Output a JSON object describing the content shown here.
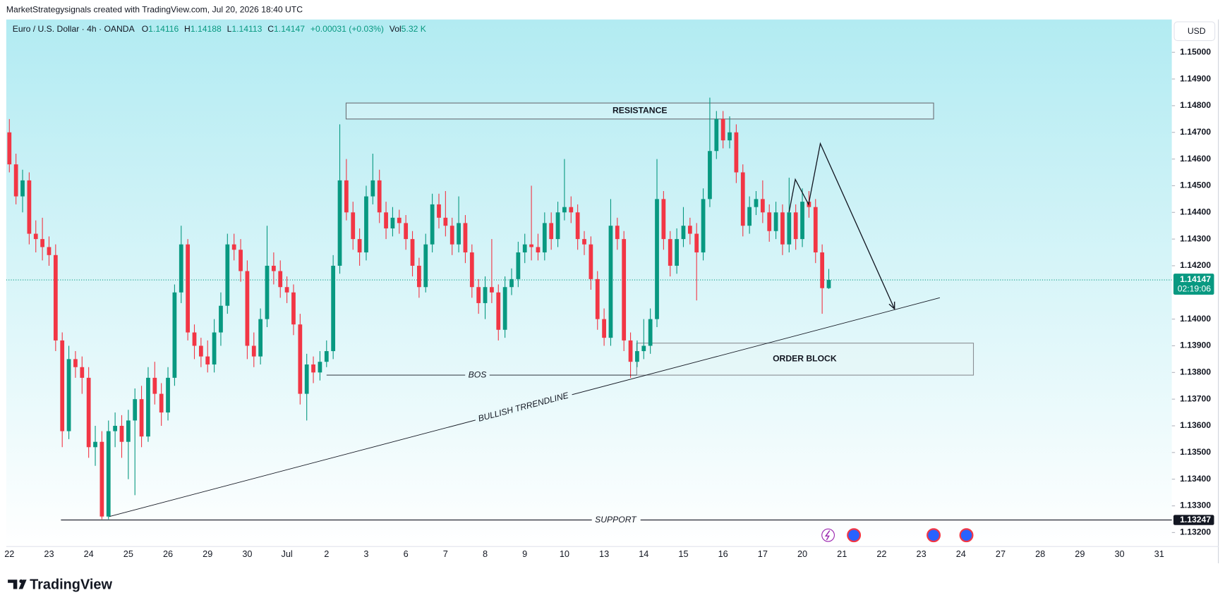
{
  "attribution": "MarketStrategysignals created with TradingView.com, Jul 20, 2026 18:40 UTC",
  "logo": "TradingView",
  "chart_data": {
    "type": "candlestick",
    "title": "Euro / U.S. Dollar · 4h · OANDA",
    "ohlc_labels": [
      "O",
      "H",
      "L",
      "C"
    ],
    "change": "+0.00031 (+0.03%)",
    "volume_label": "Vol",
    "volume": "5.32 K",
    "currency": "USD",
    "countdown": "02:19:06",
    "up_color": "#089981",
    "down_color": "#f23645",
    "ylim": [
      1.13149,
      1.15123
    ],
    "yticks": [
      {
        "value": 1.15,
        "label": "1.15000"
      },
      {
        "value": 1.149,
        "label": "1.14900"
      },
      {
        "value": 1.148,
        "label": "1.14800"
      },
      {
        "value": 1.147,
        "label": "1.14700"
      },
      {
        "value": 1.146,
        "label": "1.14600"
      },
      {
        "value": 1.145,
        "label": "1.14500"
      },
      {
        "value": 1.144,
        "label": "1.14400"
      },
      {
        "value": 1.143,
        "label": "1.14300"
      },
      {
        "value": 1.142,
        "label": "1.14200"
      },
      {
        "value": 1.14,
        "label": "1.14000"
      },
      {
        "value": 1.139,
        "label": "1.13900"
      },
      {
        "value": 1.138,
        "label": "1.13800"
      },
      {
        "value": 1.137,
        "label": "1.13700"
      },
      {
        "value": 1.136,
        "label": "1.13600"
      },
      {
        "value": 1.135,
        "label": "1.13500"
      },
      {
        "value": 1.134,
        "label": "1.13400"
      },
      {
        "value": 1.133,
        "label": "1.13300"
      },
      {
        "value": 1.132,
        "label": "1.13200"
      }
    ],
    "xtick_labels": [
      "22",
      "23",
      "24",
      "25",
      "26",
      "29",
      "30",
      "Jul",
      "2",
      "3",
      "6",
      "7",
      "8",
      "9",
      "10",
      "13",
      "14",
      "15",
      "16",
      "17",
      "20",
      "21",
      "22",
      "23",
      "24",
      "27",
      "28",
      "29",
      "30",
      "31"
    ],
    "open": [
      1.147,
      1.1458,
      1.1446,
      1.1452,
      1.1432,
      1.143,
      1.1427,
      1.1424,
      1.1392,
      1.1358,
      1.1385,
      1.1382,
      1.1378,
      1.1352,
      1.1354,
      1.1326,
      1.1358,
      1.136,
      1.1354,
      1.1362,
      1.137,
      1.1356,
      1.1378,
      1.1372,
      1.1365,
      1.1378,
      1.141,
      1.1428,
      1.1395,
      1.139,
      1.1386,
      1.1383,
      1.1395,
      1.1405,
      1.1428,
      1.1426,
      1.1418,
      1.139,
      1.1386,
      1.14,
      1.142,
      1.1418,
      1.1412,
      1.141,
      1.1398,
      1.1372,
      1.1383,
      1.138,
      1.1384,
      1.1388,
      1.142,
      1.1452,
      1.144,
      1.143,
      1.1425,
      1.1446,
      1.1452,
      1.144,
      1.1434,
      1.1438,
      1.1436,
      1.143,
      1.142,
      1.1412,
      1.1428,
      1.1443,
      1.1438,
      1.1435,
      1.1428,
      1.1436,
      1.1425,
      1.1412,
      1.1406,
      1.1412,
      1.141,
      1.1396,
      1.1412,
      1.1415,
      1.1425,
      1.1428,
      1.1427,
      1.1425,
      1.1436,
      1.143,
      1.144,
      1.1442,
      1.144,
      1.143,
      1.1428,
      1.1415,
      1.14,
      1.1393,
      1.1435,
      1.143,
      1.1392,
      1.1384,
      1.1388,
      1.139,
      1.14,
      1.1445,
      1.143,
      1.142,
      1.143,
      1.1435,
      1.1432,
      1.1425,
      1.1445,
      1.1463,
      1.1475,
      1.1467,
      1.147,
      1.1455,
      1.1435,
      1.1442,
      1.1445,
      1.144,
      1.1433,
      1.144,
      1.1428,
      1.144,
      1.143,
      1.1444,
      1.1442,
      1.1425,
      1.14116
    ],
    "high": [
      1.1475,
      1.1462,
      1.1456,
      1.1455,
      1.1437,
      1.1438,
      1.1431,
      1.1428,
      1.1395,
      1.139,
      1.1388,
      1.1386,
      1.1382,
      1.136,
      1.1358,
      1.1362,
      1.1365,
      1.1364,
      1.1366,
      1.1374,
      1.1375,
      1.1382,
      1.1384,
      1.1376,
      1.1382,
      1.1413,
      1.1435,
      1.143,
      1.1398,
      1.1393,
      1.1392,
      1.14,
      1.141,
      1.1432,
      1.1432,
      1.143,
      1.1422,
      1.1395,
      1.1404,
      1.1435,
      1.1425,
      1.1422,
      1.1416,
      1.1413,
      1.1402,
      1.1387,
      1.1386,
      1.1388,
      1.1392,
      1.1424,
      1.1473,
      1.146,
      1.1444,
      1.1434,
      1.145,
      1.1462,
      1.1456,
      1.1444,
      1.1442,
      1.1441,
      1.1439,
      1.1433,
      1.1423,
      1.1432,
      1.1447,
      1.1447,
      1.1448,
      1.1438,
      1.1446,
      1.1439,
      1.1428,
      1.1415,
      1.1416,
      1.143,
      1.1413,
      1.1416,
      1.1419,
      1.1429,
      1.1432,
      1.145,
      1.1432,
      1.144,
      1.144,
      1.1444,
      1.146,
      1.1446,
      1.1443,
      1.1433,
      1.1431,
      1.1418,
      1.1404,
      1.1445,
      1.1438,
      1.1433,
      1.1395,
      1.1392,
      1.14,
      1.1404,
      1.146,
      1.1448,
      1.1433,
      1.1434,
      1.1442,
      1.1438,
      1.1436,
      1.1449,
      1.1483,
      1.1478,
      1.1478,
      1.1476,
      1.1473,
      1.1458,
      1.1446,
      1.1448,
      1.1452,
      1.1443,
      1.1444,
      1.1443,
      1.1453,
      1.1443,
      1.1449,
      1.1448,
      1.1445,
      1.1428,
      1.14188
    ],
    "low": [
      1.1455,
      1.1443,
      1.144,
      1.1428,
      1.1425,
      1.1422,
      1.142,
      1.1388,
      1.1352,
      1.1355,
      1.1378,
      1.1372,
      1.1348,
      1.1345,
      1.1325,
      1.1325,
      1.1352,
      1.1348,
      1.134,
      1.1334,
      1.1352,
      1.1354,
      1.1368,
      1.136,
      1.1362,
      1.1375,
      1.1406,
      1.1392,
      1.1385,
      1.1382,
      1.138,
      1.138,
      1.139,
      1.1402,
      1.1422,
      1.1414,
      1.1385,
      1.1382,
      1.1383,
      1.1397,
      1.1413,
      1.1408,
      1.1406,
      1.1394,
      1.1368,
      1.1362,
      1.1376,
      1.1377,
      1.1382,
      1.1385,
      1.1417,
      1.1437,
      1.1426,
      1.142,
      1.1422,
      1.1443,
      1.1436,
      1.143,
      1.1431,
      1.1432,
      1.1426,
      1.1416,
      1.1408,
      1.141,
      1.1425,
      1.1434,
      1.1431,
      1.1424,
      1.1425,
      1.1421,
      1.1408,
      1.1402,
      1.14,
      1.1406,
      1.1392,
      1.1393,
      1.1409,
      1.1412,
      1.1421,
      1.1422,
      1.1422,
      1.1422,
      1.1426,
      1.1427,
      1.1437,
      1.1436,
      1.1426,
      1.1424,
      1.1411,
      1.1396,
      1.139,
      1.139,
      1.1426,
      1.1388,
      1.1378,
      1.1382,
      1.1385,
      1.1387,
      1.1397,
      1.1426,
      1.1416,
      1.1417,
      1.1427,
      1.1428,
      1.1407,
      1.1422,
      1.1442,
      1.146,
      1.1464,
      1.1464,
      1.1451,
      1.1431,
      1.1432,
      1.1439,
      1.1436,
      1.1429,
      1.143,
      1.1424,
      1.1425,
      1.1426,
      1.1427,
      1.1438,
      1.1421,
      1.1402,
      1.14113
    ],
    "close": [
      1.1458,
      1.1446,
      1.1452,
      1.1432,
      1.143,
      1.1427,
      1.1424,
      1.1392,
      1.1358,
      1.1385,
      1.1382,
      1.1378,
      1.1352,
      1.1354,
      1.1326,
      1.1358,
      1.136,
      1.1354,
      1.1362,
      1.137,
      1.1356,
      1.1378,
      1.1372,
      1.1365,
      1.1378,
      1.141,
      1.1428,
      1.1395,
      1.139,
      1.1386,
      1.1383,
      1.1395,
      1.1405,
      1.1428,
      1.1426,
      1.1418,
      1.139,
      1.1386,
      1.14,
      1.142,
      1.1418,
      1.1412,
      1.141,
      1.1398,
      1.1372,
      1.1383,
      1.138,
      1.1384,
      1.1388,
      1.142,
      1.1452,
      1.144,
      1.143,
      1.1425,
      1.1446,
      1.1452,
      1.144,
      1.1434,
      1.1438,
      1.1436,
      1.143,
      1.142,
      1.1412,
      1.1428,
      1.1443,
      1.1438,
      1.1435,
      1.1428,
      1.1436,
      1.1425,
      1.1412,
      1.1406,
      1.1412,
      1.141,
      1.1396,
      1.1412,
      1.1415,
      1.1425,
      1.1428,
      1.1427,
      1.1425,
      1.1436,
      1.143,
      1.144,
      1.1442,
      1.144,
      1.143,
      1.1428,
      1.1415,
      1.14,
      1.1393,
      1.1435,
      1.143,
      1.1392,
      1.1384,
      1.1388,
      1.139,
      1.14,
      1.1445,
      1.143,
      1.142,
      1.143,
      1.1435,
      1.1432,
      1.1425,
      1.1445,
      1.1463,
      1.1475,
      1.1467,
      1.147,
      1.1455,
      1.1435,
      1.1442,
      1.1445,
      1.144,
      1.1433,
      1.144,
      1.1428,
      1.144,
      1.143,
      1.1444,
      1.1442,
      1.1425,
      1.14116,
      1.14147
    ],
    "resistance": {
      "label": "RESISTANCE",
      "ylim": [
        1.1475,
        1.1481
      ]
    },
    "order_block": {
      "label": "ORDER BLOCK",
      "ylim": [
        1.1379,
        1.1391
      ]
    },
    "bos": {
      "label": "BOS",
      "value": 1.1379
    },
    "trendline": {
      "label": "BULLISH TRRENDLINE",
      "values": [
        1.1326,
        1.1408
      ]
    },
    "support": {
      "label": "SUPPORT",
      "value": 1.13247
    }
  }
}
